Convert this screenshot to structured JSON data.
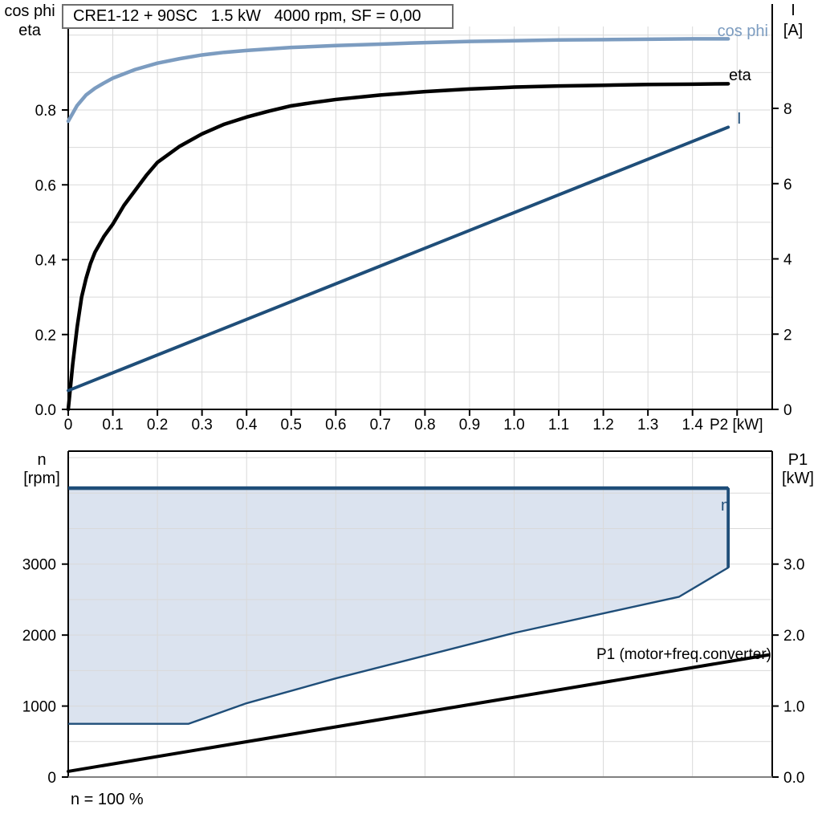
{
  "title_box": {
    "text": "CRE1-12 + 90SC   1.5 kW   4000 rpm, SF = 0,00"
  },
  "colors": {
    "cos_phi": "#7c9cc0",
    "eta": "#000000",
    "current": "#1f4e79",
    "region_fill": "#dbe3ef",
    "region_stroke": "#1f4e79",
    "p1_line": "#000000",
    "grid": "#d9d9d9",
    "axis": "#000000",
    "axis_bottom_gray": "#808080"
  },
  "top_chart": {
    "left_axis_label_1": "cos phi",
    "left_axis_label_2": "eta",
    "right_axis_label_1": "I",
    "right_axis_label_2": "[A]",
    "x_axis_unit": "P2 [kW]",
    "curve_label_cos_phi": "cos phi",
    "curve_label_eta": "eta",
    "curve_label_current": "I"
  },
  "bottom_chart": {
    "left_axis_label_1": "n",
    "left_axis_label_2": "[rpm]",
    "right_axis_label_1": "P1",
    "right_axis_label_2": "[kW]",
    "curve_label_n": "n",
    "curve_label_p1": "P1 (motor+freq.converter)",
    "footnote": "n = 100 %"
  },
  "chart_data": [
    {
      "type": "line",
      "title": "CRE1-12 + 90SC   1.5 kW   4000 rpm, SF = 0,00",
      "xlabel": "P2 [kW]",
      "x_axis": {
        "min": 0,
        "max": 1.578,
        "grid_step": 0.1,
        "ticks": [
          {
            "v": 0,
            "t": "0"
          },
          {
            "v": 0.1,
            "t": "0.1"
          },
          {
            "v": 0.2,
            "t": "0.2"
          },
          {
            "v": 0.3,
            "t": "0.3"
          },
          {
            "v": 0.4,
            "t": "0.4"
          },
          {
            "v": 0.5,
            "t": "0.5"
          },
          {
            "v": 0.6,
            "t": "0.6"
          },
          {
            "v": 0.7,
            "t": "0.7"
          },
          {
            "v": 0.8,
            "t": "0.8"
          },
          {
            "v": 0.9,
            "t": "0.9"
          },
          {
            "v": 1.0,
            "t": "1.0"
          },
          {
            "v": 1.1,
            "t": "1.1"
          },
          {
            "v": 1.2,
            "t": "1.2"
          },
          {
            "v": 1.3,
            "t": "1.3"
          },
          {
            "v": 1.4,
            "t": "1.4"
          },
          {
            "v": 1.5,
            "t": ""
          }
        ]
      },
      "left_axis": {
        "label": "cos phi / eta",
        "min": 0,
        "max": 1.023,
        "grid_step": 0.1,
        "ticks": [
          {
            "v": 0,
            "t": "0.0"
          },
          {
            "v": 0.2,
            "t": "0.2"
          },
          {
            "v": 0.4,
            "t": "0.4"
          },
          {
            "v": 0.6,
            "t": "0.6"
          },
          {
            "v": 0.8,
            "t": "0.8"
          }
        ]
      },
      "right_axis": {
        "label": "I [A]",
        "min": 0,
        "max": 10.18,
        "ticks": [
          {
            "v": 0,
            "t": "0"
          },
          {
            "v": 2,
            "t": "2"
          },
          {
            "v": 4,
            "t": "4"
          },
          {
            "v": 6,
            "t": "6"
          },
          {
            "v": 8,
            "t": "8"
          }
        ]
      },
      "series": [
        {
          "name": "cos phi",
          "axis": "left",
          "color_key": "cos_phi",
          "width": 4.5,
          "points": [
            [
              0,
              0.77
            ],
            [
              0.02,
              0.812
            ],
            [
              0.04,
              0.84
            ],
            [
              0.06,
              0.858
            ],
            [
              0.08,
              0.872
            ],
            [
              0.1,
              0.885
            ],
            [
              0.15,
              0.908
            ],
            [
              0.2,
              0.925
            ],
            [
              0.25,
              0.937
            ],
            [
              0.3,
              0.947
            ],
            [
              0.35,
              0.954
            ],
            [
              0.4,
              0.959
            ],
            [
              0.5,
              0.967
            ],
            [
              0.6,
              0.972
            ],
            [
              0.7,
              0.976
            ],
            [
              0.8,
              0.98
            ],
            [
              0.9,
              0.983
            ],
            [
              1.0,
              0.985
            ],
            [
              1.1,
              0.987
            ],
            [
              1.2,
              0.988
            ],
            [
              1.3,
              0.989
            ],
            [
              1.4,
              0.99
            ],
            [
              1.48,
              0.99
            ]
          ]
        },
        {
          "name": "eta",
          "axis": "left",
          "color_key": "eta",
          "width": 4.5,
          "points": [
            [
              0,
              0
            ],
            [
              0.01,
              0.12
            ],
            [
              0.02,
              0.22
            ],
            [
              0.03,
              0.3
            ],
            [
              0.04,
              0.35
            ],
            [
              0.05,
              0.39
            ],
            [
              0.06,
              0.42
            ],
            [
              0.08,
              0.462
            ],
            [
              0.1,
              0.495
            ],
            [
              0.125,
              0.545
            ],
            [
              0.15,
              0.585
            ],
            [
              0.175,
              0.625
            ],
            [
              0.2,
              0.66
            ],
            [
              0.25,
              0.703
            ],
            [
              0.3,
              0.736
            ],
            [
              0.35,
              0.762
            ],
            [
              0.4,
              0.781
            ],
            [
              0.45,
              0.797
            ],
            [
              0.5,
              0.811
            ],
            [
              0.55,
              0.82
            ],
            [
              0.6,
              0.828
            ],
            [
              0.7,
              0.84
            ],
            [
              0.8,
              0.849
            ],
            [
              0.9,
              0.856
            ],
            [
              1.0,
              0.861
            ],
            [
              1.1,
              0.864
            ],
            [
              1.2,
              0.866
            ],
            [
              1.3,
              0.868
            ],
            [
              1.4,
              0.869
            ],
            [
              1.48,
              0.87
            ]
          ]
        },
        {
          "name": "I",
          "axis": "right",
          "color_key": "current",
          "width": 4,
          "points": [
            [
              0,
              0.5
            ],
            [
              1.48,
              7.5
            ]
          ]
        }
      ]
    },
    {
      "type": "area-line",
      "xlabel": "",
      "x_axis": {
        "min": 0,
        "max": 1.578,
        "grid_step": 0.2
      },
      "left_axis": {
        "label": "n [rpm]",
        "min": 0,
        "max": 4590,
        "grid_step": 500,
        "ticks": [
          {
            "v": 0,
            "t": "0"
          },
          {
            "v": 1000,
            "t": "1000"
          },
          {
            "v": 2000,
            "t": "2000"
          },
          {
            "v": 3000,
            "t": "3000"
          }
        ]
      },
      "right_axis": {
        "label": "P1 [kW]",
        "min": 0,
        "max": 4.59,
        "grid_step": 0.5,
        "ticks": [
          {
            "v": 0,
            "t": "0.0"
          },
          {
            "v": 1,
            "t": "1.0"
          },
          {
            "v": 2,
            "t": "2.0"
          },
          {
            "v": 3,
            "t": "3.0"
          }
        ]
      },
      "region": {
        "name": "n",
        "axis": "left",
        "top_value": 4070,
        "points": [
          [
            0,
            750
          ],
          [
            0.27,
            750
          ],
          [
            0.4,
            1040
          ],
          [
            0.6,
            1390
          ],
          [
            1.0,
            2030
          ],
          [
            1.37,
            2540
          ],
          [
            1.48,
            2950
          ],
          [
            1.48,
            4070
          ],
          [
            0,
            4070
          ]
        ]
      },
      "series": [
        {
          "name": "P1 (motor+freq.converter)",
          "axis": "right",
          "color_key": "p1_line",
          "width": 4,
          "points": [
            [
              0,
              0.08
            ],
            [
              1.57,
              1.72
            ]
          ]
        }
      ],
      "footnote": "n = 100 %"
    }
  ]
}
